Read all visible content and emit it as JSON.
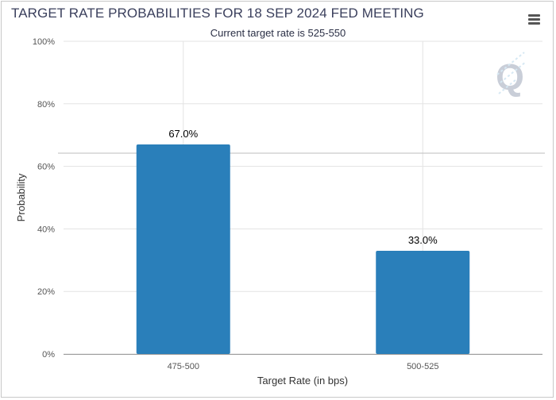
{
  "chart_data": {
    "type": "bar",
    "title": "TARGET RATE PROBABILITIES FOR 18 SEP 2024 FED MEETING",
    "subtitle": "Current target rate is 525-550",
    "xlabel": "Target Rate (in bps)",
    "ylabel": "Probability",
    "categories": [
      "475-500",
      "500-525"
    ],
    "values": [
      67.0,
      33.0
    ],
    "data_labels": [
      "67.0%",
      "33.0%"
    ],
    "ylim": [
      0,
      100
    ],
    "y_ticks": [
      0,
      20,
      40,
      60,
      80,
      100
    ],
    "y_tick_labels": [
      "0%",
      "20%",
      "40%",
      "60%",
      "80%",
      "100%"
    ],
    "grid": true,
    "legend": "none",
    "bar_color": "#2a7fba"
  },
  "ui": {
    "menu_icon": "hamburger-menu-icon",
    "watermark_icon": "q-logo-icon",
    "watermark_letter": "Q"
  }
}
